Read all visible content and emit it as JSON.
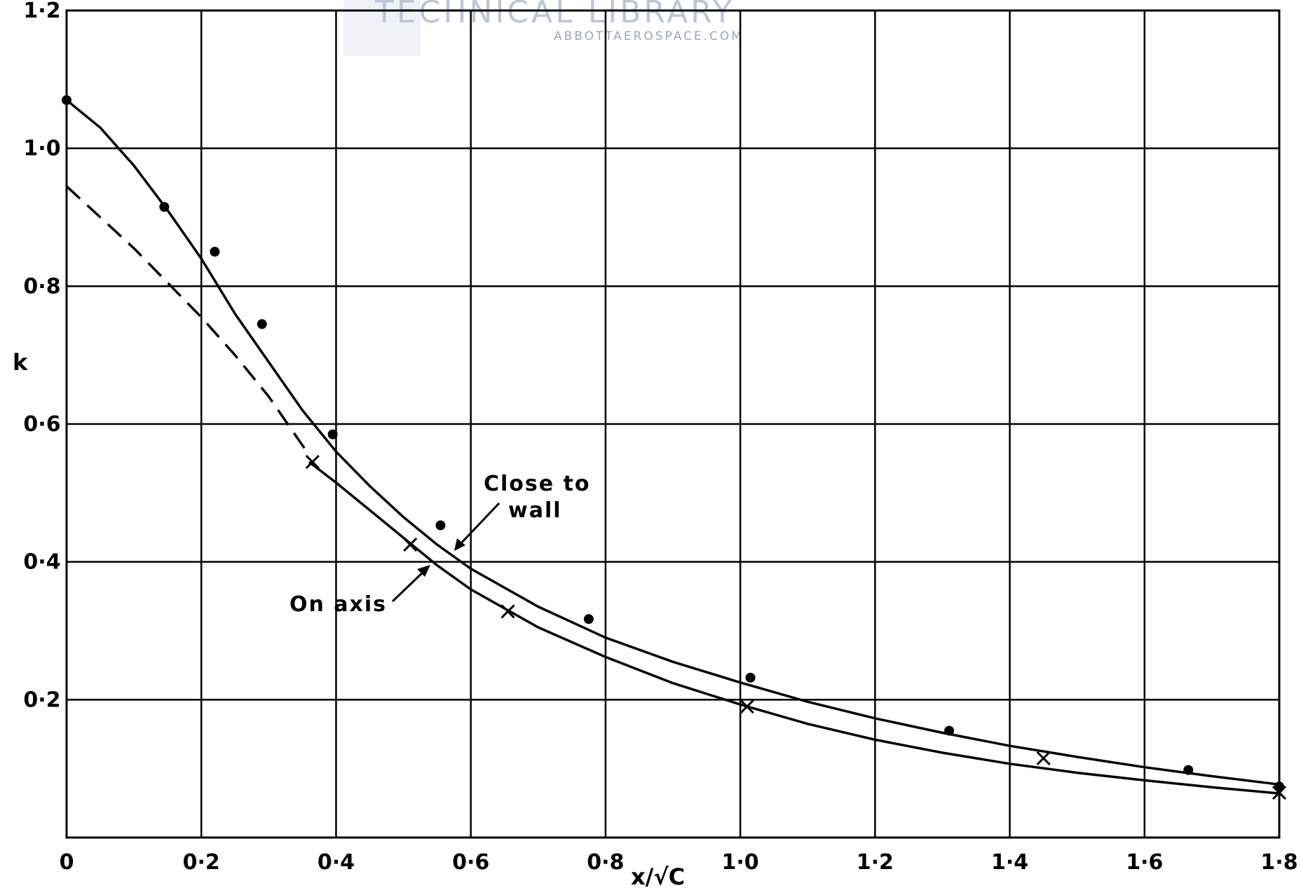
{
  "watermark": {
    "title": "TECHNICAL LIBRARY",
    "subtitle": "ABBOTTAEROSPACE.COM"
  },
  "chart_data": {
    "type": "line",
    "xlabel": "x/√C",
    "ylabel": "k",
    "xlim": [
      0,
      1.8
    ],
    "ylim": [
      0,
      1.2
    ],
    "grid": true,
    "x_ticks": [
      {
        "value": 0,
        "label": "0"
      },
      {
        "value": 0.2,
        "label": "0·2"
      },
      {
        "value": 0.4,
        "label": "0·4"
      },
      {
        "value": 0.6,
        "label": "0·6"
      },
      {
        "value": 0.8,
        "label": "0·8"
      },
      {
        "value": 1.0,
        "label": "1·0"
      },
      {
        "value": 1.2,
        "label": "1·2"
      },
      {
        "value": 1.4,
        "label": "1·4"
      },
      {
        "value": 1.6,
        "label": "1·6"
      },
      {
        "value": 1.8,
        "label": "1·8"
      }
    ],
    "y_ticks": [
      {
        "value": 0.2,
        "label": "0·2"
      },
      {
        "value": 0.4,
        "label": "0·4"
      },
      {
        "value": 0.6,
        "label": "0·6"
      },
      {
        "value": 0.8,
        "label": "0·8"
      },
      {
        "value": 1.0,
        "label": "1·0"
      },
      {
        "value": 1.2,
        "label": "1·2"
      }
    ],
    "series": [
      {
        "name": "Close to wall",
        "marker": "dot",
        "style": "solid",
        "points": [
          [
            0.0,
            1.07
          ],
          [
            0.145,
            0.915
          ],
          [
            0.22,
            0.85
          ],
          [
            0.29,
            0.745
          ],
          [
            0.395,
            0.585
          ],
          [
            0.555,
            0.453
          ],
          [
            0.775,
            0.317
          ],
          [
            1.015,
            0.232
          ],
          [
            1.31,
            0.155
          ],
          [
            1.665,
            0.098
          ],
          [
            1.8,
            0.074
          ]
        ],
        "curve": [
          [
            0.0,
            1.07
          ],
          [
            0.05,
            1.03
          ],
          [
            0.1,
            0.975
          ],
          [
            0.15,
            0.91
          ],
          [
            0.2,
            0.84
          ],
          [
            0.25,
            0.76
          ],
          [
            0.3,
            0.69
          ],
          [
            0.35,
            0.62
          ],
          [
            0.4,
            0.56
          ],
          [
            0.45,
            0.51
          ],
          [
            0.5,
            0.465
          ],
          [
            0.55,
            0.425
          ],
          [
            0.6,
            0.39
          ],
          [
            0.7,
            0.335
          ],
          [
            0.8,
            0.29
          ],
          [
            0.9,
            0.255
          ],
          [
            1.0,
            0.225
          ],
          [
            1.1,
            0.197
          ],
          [
            1.2,
            0.173
          ],
          [
            1.3,
            0.152
          ],
          [
            1.4,
            0.133
          ],
          [
            1.5,
            0.117
          ],
          [
            1.6,
            0.102
          ],
          [
            1.7,
            0.089
          ],
          [
            1.8,
            0.077
          ]
        ]
      },
      {
        "name": "On axis",
        "marker": "cross",
        "style": "solid",
        "points": [
          [
            0.365,
            0.545
          ],
          [
            0.51,
            0.425
          ],
          [
            0.655,
            0.328
          ],
          [
            1.01,
            0.19
          ],
          [
            1.45,
            0.115
          ],
          [
            1.8,
            0.065
          ]
        ],
        "curve": [
          [
            0.36,
            0.545
          ],
          [
            0.4,
            0.515
          ],
          [
            0.45,
            0.475
          ],
          [
            0.5,
            0.435
          ],
          [
            0.55,
            0.395
          ],
          [
            0.6,
            0.36
          ],
          [
            0.7,
            0.305
          ],
          [
            0.8,
            0.262
          ],
          [
            0.9,
            0.224
          ],
          [
            1.0,
            0.193
          ],
          [
            1.1,
            0.165
          ],
          [
            1.2,
            0.142
          ],
          [
            1.3,
            0.123
          ],
          [
            1.4,
            0.107
          ],
          [
            1.5,
            0.094
          ],
          [
            1.6,
            0.083
          ],
          [
            1.7,
            0.073
          ],
          [
            1.8,
            0.064
          ]
        ],
        "dashed_extension": [
          [
            0.0,
            0.945
          ],
          [
            0.05,
            0.9
          ],
          [
            0.1,
            0.855
          ],
          [
            0.15,
            0.805
          ],
          [
            0.2,
            0.755
          ],
          [
            0.25,
            0.7
          ],
          [
            0.3,
            0.64
          ],
          [
            0.36,
            0.555
          ]
        ]
      }
    ],
    "annotations": [
      {
        "text_lines": [
          "Close",
          "to",
          "wall"
        ],
        "display": [
          "Close to",
          "wall"
        ],
        "points_to": "Close to wall"
      },
      {
        "text_lines": [
          "On axis"
        ],
        "display": [
          "On axis"
        ],
        "points_to": "On axis"
      }
    ]
  }
}
